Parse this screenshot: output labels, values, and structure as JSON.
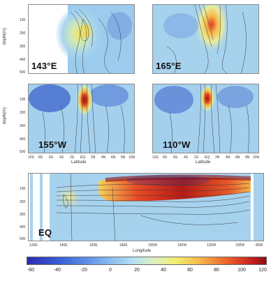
{
  "panels": {
    "p143e": {
      "label": "143°E"
    },
    "p165e": {
      "label": "165°E"
    },
    "p155w": {
      "label": "155°W"
    },
    "p110w": {
      "label": "110°W"
    },
    "peq": {
      "label": "EQ"
    }
  },
  "axes": {
    "depth_label": "depth(m)",
    "depth_ticks": [
      "100",
      "200",
      "300",
      "400",
      "500"
    ],
    "latitude_label": "Latitude",
    "latitude_ticks": [
      "10S",
      "8S",
      "6S",
      "4S",
      "2S",
      "EQ",
      "2N",
      "4N",
      "6N",
      "8N",
      "10N"
    ],
    "longitude_label": "Longitude",
    "longitude_ticks": [
      "120E",
      "140E",
      "160E",
      "180E",
      "160W",
      "140W",
      "120W",
      "100W",
      "80W"
    ]
  },
  "colorbar": {
    "ticks": [
      "-60",
      "-40",
      "-20",
      "0",
      "20",
      "40",
      "60",
      "80",
      "100",
      "120"
    ]
  }
}
